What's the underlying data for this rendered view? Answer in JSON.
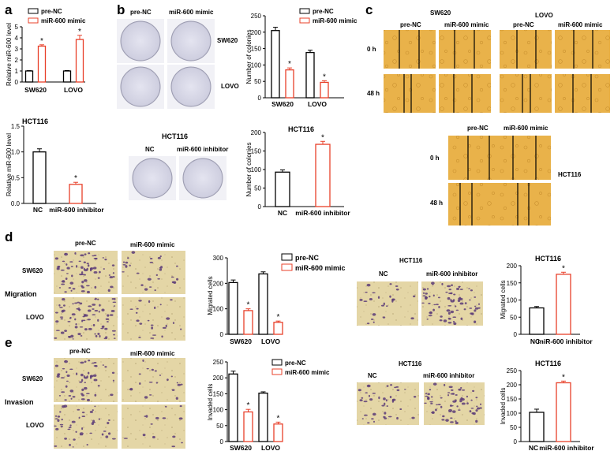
{
  "colors": {
    "black": "#000000",
    "red": "#e8402a",
    "plate": "#dcdcec",
    "scratch": "#e9b24a",
    "membrane": "#e4d6a6",
    "stain": "#5c3c78"
  },
  "panels": {
    "a": {
      "letter": "a",
      "legend": [
        "pre-NC",
        "miR-600 mimic"
      ],
      "top_ylabel": "Relative miR-600 level",
      "bottom_title": "HCT116",
      "bottom_ylabel": "Relative miR-600 level"
    },
    "b": {
      "letter": "b",
      "plate_col_labels": [
        "pre-NC",
        "miR-600 mimic"
      ],
      "plate_row_labels": [
        "SW620",
        "LOVO"
      ],
      "legend": [
        "pre-NC",
        "miR-600 mimic"
      ],
      "top_ylabel": "Number of colonies",
      "hct_title": "HCT116",
      "hct_col_labels": [
        "NC",
        "miR-600 inhibitor"
      ],
      "bottom_title": "HCT116",
      "bottom_ylabel": "Number of colonies"
    },
    "c": {
      "letter": "c",
      "cell_lines": [
        "SW620",
        "LOVO"
      ],
      "col_labels": [
        "pre-NC",
        "miR-600 mimic",
        "pre-NC",
        "miR-600 mimic"
      ],
      "row_labels": [
        "0 h",
        "48 h"
      ],
      "hct_col_labels": [
        "pre-NC",
        "miR-600 mimic"
      ],
      "hct_row_labels": [
        "0 h",
        "48 h"
      ],
      "hct_title": "HCT116"
    },
    "d": {
      "letter": "d",
      "col_labels": [
        "pre-NC",
        "miR-600 mimic"
      ],
      "row_labels": [
        "SW620",
        "LOVO"
      ],
      "side_label": "Migration",
      "legend": [
        "pre-NC",
        "miR-600 mimic"
      ],
      "ylabel": "Migrated cells",
      "hct_title": "HCT116",
      "hct_col_labels": [
        "NC",
        "miR-600 inhibitor"
      ],
      "hct_chart_title": "HCT116",
      "hct_ylabel": "Migrated cells"
    },
    "e": {
      "letter": "e",
      "col_labels": [
        "pre-NC",
        "miR-600 mimic"
      ],
      "row_labels": [
        "SW620",
        "LOVO"
      ],
      "side_label": "Invasion",
      "legend": [
        "pre-NC",
        "miR-600 mimic"
      ],
      "ylabel": "Invaded cells",
      "hct_title": "HCT116",
      "hct_col_labels": [
        "NC",
        "miR-600 inhibitor"
      ],
      "hct_chart_title": "HCT116",
      "hct_ylabel": "Invaded cells"
    }
  },
  "chart_data": [
    {
      "id": "a-top",
      "type": "bar",
      "title": "",
      "ylabel": "Relative miR-600 level",
      "categories": [
        "SW620",
        "LOVO"
      ],
      "ylim": [
        0,
        5
      ],
      "yticks": [
        0,
        1,
        2,
        3,
        4,
        5
      ],
      "series": [
        {
          "name": "pre-NC",
          "values": [
            1.0,
            1.0
          ],
          "errors": [
            0.03,
            0.04
          ]
        },
        {
          "name": "miR-600 mimic",
          "values": [
            3.25,
            3.85
          ],
          "errors": [
            0.12,
            0.38
          ]
        }
      ],
      "significance": [
        "*",
        "*"
      ]
    },
    {
      "id": "a-bottom",
      "type": "bar",
      "title": "HCT116",
      "ylabel": "Relative miR-600 level",
      "categories": [
        "NC",
        "miR-600 inhibitor"
      ],
      "ylim": [
        0,
        1.5
      ],
      "yticks": [
        0.0,
        0.5,
        1.0,
        1.5
      ],
      "values": [
        1.0,
        0.37
      ],
      "errors": [
        0.06,
        0.04
      ],
      "significance": [
        "",
        "*"
      ]
    },
    {
      "id": "b-top",
      "type": "bar",
      "title": "",
      "ylabel": "Number of colonies",
      "categories": [
        "SW620",
        "LOVO"
      ],
      "ylim": [
        0,
        250
      ],
      "yticks": [
        0,
        50,
        100,
        150,
        200,
        250
      ],
      "series": [
        {
          "name": "pre-NC",
          "values": [
            205,
            138
          ],
          "errors": [
            10,
            7
          ]
        },
        {
          "name": "miR-600 mimic",
          "values": [
            85,
            47
          ],
          "errors": [
            6,
            5
          ]
        }
      ],
      "significance": [
        "*",
        "*"
      ]
    },
    {
      "id": "b-bottom",
      "type": "bar",
      "title": "HCT116",
      "ylabel": "Number of colonies",
      "categories": [
        "NC",
        "miR-600 inhibitor"
      ],
      "ylim": [
        0,
        200
      ],
      "yticks": [
        0,
        50,
        100,
        150,
        200
      ],
      "values": [
        93,
        168
      ],
      "errors": [
        6,
        8
      ],
      "significance": [
        "",
        "*"
      ]
    },
    {
      "id": "d-left",
      "type": "bar",
      "title": "",
      "ylabel": "Migrated cells",
      "categories": [
        "SW620",
        "LOVO"
      ],
      "ylim": [
        0,
        300
      ],
      "yticks": [
        0,
        100,
        200,
        300
      ],
      "series": [
        {
          "name": "pre-NC",
          "values": [
            203,
            237
          ],
          "errors": [
            10,
            8
          ]
        },
        {
          "name": "miR-600 mimic",
          "values": [
            93,
            47
          ],
          "errors": [
            7,
            5
          ]
        }
      ],
      "significance": [
        "*",
        "*"
      ]
    },
    {
      "id": "d-right",
      "type": "bar",
      "title": "HCT116",
      "ylabel": "Migrated cells",
      "categories": [
        "NC",
        "miR-600 inhibitor"
      ],
      "ylim": [
        0,
        200
      ],
      "yticks": [
        0,
        50,
        100,
        150,
        200
      ],
      "values": [
        77,
        175
      ],
      "errors": [
        4,
        6
      ],
      "significance": [
        "",
        "*"
      ]
    },
    {
      "id": "e-left",
      "type": "bar",
      "title": "",
      "ylabel": "Invaded cells",
      "categories": [
        "SW620",
        "LOVO"
      ],
      "ylim": [
        0,
        250
      ],
      "yticks": [
        0,
        50,
        100,
        150,
        200,
        250
      ],
      "series": [
        {
          "name": "pre-NC",
          "values": [
            212,
            152
          ],
          "errors": [
            9,
            4
          ]
        },
        {
          "name": "miR-600 mimic",
          "values": [
            93,
            55
          ],
          "errors": [
            8,
            6
          ]
        }
      ],
      "significance": [
        "*",
        "*"
      ]
    },
    {
      "id": "e-right",
      "type": "bar",
      "title": "HCT116",
      "ylabel": "Invaded cells",
      "categories": [
        "NC",
        "miR-600 inhibitor"
      ],
      "ylim": [
        0,
        250
      ],
      "yticks": [
        0,
        50,
        100,
        150,
        200,
        250
      ],
      "values": [
        103,
        207
      ],
      "errors": [
        11,
        6
      ],
      "significance": [
        "",
        "*"
      ]
    }
  ]
}
